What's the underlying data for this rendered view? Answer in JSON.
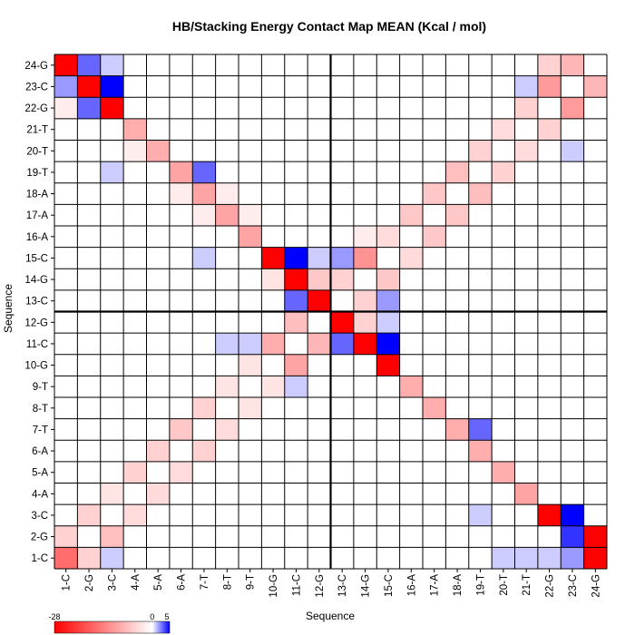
{
  "chart_data": {
    "type": "heatmap",
    "title": "HB/Stacking Energy Contact Map MEAN (Kcal / mol)",
    "xlabel": "Sequence",
    "ylabel": "Sequence",
    "x_categories": [
      "1-C",
      "2-G",
      "3-C",
      "4-A",
      "5-A",
      "6-A",
      "7-T",
      "8-T",
      "9-T",
      "10-G",
      "11-C",
      "12-G",
      "13-C",
      "14-G",
      "15-C",
      "16-A",
      "17-A",
      "18-A",
      "19-T",
      "20-T",
      "21-T",
      "22-G",
      "23-C",
      "24-G"
    ],
    "y_categories": [
      "1-C",
      "2-G",
      "3-C",
      "4-A",
      "5-A",
      "6-A",
      "7-T",
      "8-T",
      "9-T",
      "10-G",
      "11-C",
      "12-G",
      "13-C",
      "14-G",
      "15-C",
      "16-A",
      "17-A",
      "18-A",
      "19-T",
      "20-T",
      "21-T",
      "22-G",
      "23-C",
      "24-G"
    ],
    "colorbar": {
      "min": -28,
      "mid": 0,
      "max": 5,
      "ticks": [
        "-28",
        "0",
        "5"
      ],
      "low_color": "#ff0000",
      "mid_color": "#ffffff",
      "high_color": "#0000ff"
    },
    "strand_divider_after_index": 12,
    "matrix": [
      [
        -16,
        -5,
        1,
        0,
        0,
        0,
        0,
        0,
        0,
        0,
        0,
        0,
        0,
        0,
        0,
        0,
        0,
        0,
        0,
        1,
        1,
        1,
        2,
        -28
      ],
      [
        -5,
        0,
        -7,
        0,
        0,
        0,
        0,
        0,
        0,
        0,
        0,
        0,
        0,
        0,
        0,
        0,
        0,
        0,
        0,
        0,
        0,
        0,
        4,
        -28
      ],
      [
        0,
        -5,
        0,
        -4,
        0,
        0,
        0,
        0,
        0,
        0,
        0,
        0,
        0,
        0,
        0,
        0,
        0,
        0,
        1,
        0,
        0,
        -28,
        5,
        0
      ],
      [
        0,
        0,
        -3,
        0,
        -4,
        0,
        0,
        0,
        0,
        0,
        0,
        0,
        0,
        0,
        0,
        0,
        0,
        0,
        0,
        0,
        -10,
        0,
        0,
        0
      ],
      [
        0,
        0,
        0,
        -5,
        0,
        -4,
        0,
        0,
        0,
        0,
        0,
        0,
        0,
        0,
        0,
        0,
        0,
        0,
        0,
        -9,
        0,
        0,
        0,
        0
      ],
      [
        0,
        0,
        0,
        0,
        -5,
        0,
        -5,
        0,
        0,
        0,
        0,
        0,
        0,
        0,
        0,
        0,
        0,
        0,
        -9,
        0,
        0,
        0,
        0,
        0
      ],
      [
        0,
        0,
        0,
        0,
        0,
        -6,
        0,
        -4,
        0,
        0,
        0,
        0,
        0,
        0,
        0,
        0,
        0,
        -9,
        3,
        0,
        0,
        0,
        0,
        0
      ],
      [
        0,
        0,
        0,
        0,
        0,
        0,
        -5,
        0,
        -3,
        0,
        0,
        0,
        0,
        0,
        0,
        0,
        -9,
        0,
        0,
        0,
        0,
        0,
        0,
        0
      ],
      [
        0,
        0,
        0,
        0,
        0,
        0,
        0,
        -3,
        0,
        -3,
        1,
        0,
        0,
        0,
        0,
        -9,
        0,
        0,
        0,
        0,
        0,
        0,
        0,
        0
      ],
      [
        0,
        0,
        0,
        0,
        0,
        0,
        0,
        0,
        -3,
        0,
        -10,
        0,
        0,
        0,
        -28,
        0,
        0,
        0,
        0,
        0,
        0,
        0,
        0,
        0
      ],
      [
        0,
        0,
        0,
        0,
        0,
        0,
        0,
        1,
        1,
        -9,
        0,
        -8,
        3,
        -28,
        5,
        0,
        0,
        0,
        0,
        0,
        0,
        0,
        0,
        0
      ],
      [
        0,
        0,
        0,
        0,
        0,
        0,
        0,
        0,
        0,
        0,
        -7,
        0,
        -28,
        -5,
        1,
        0,
        0,
        0,
        0,
        0,
        0,
        0,
        0,
        0
      ],
      [
        0,
        0,
        0,
        0,
        0,
        0,
        0,
        0,
        0,
        0,
        3,
        -28,
        0,
        -5,
        2,
        0,
        0,
        0,
        0,
        0,
        0,
        0,
        0,
        0
      ],
      [
        0,
        0,
        0,
        0,
        0,
        0,
        0,
        0,
        0,
        -3,
        -28,
        -6,
        -5,
        0,
        -6,
        0,
        0,
        0,
        0,
        0,
        0,
        0,
        0,
        0
      ],
      [
        0,
        0,
        0,
        0,
        0,
        0,
        1,
        0,
        0,
        -28,
        5,
        1,
        2,
        -12,
        0,
        -4,
        0,
        0,
        0,
        0,
        0,
        0,
        0,
        0
      ],
      [
        0,
        0,
        0,
        0,
        0,
        0,
        0,
        0,
        -10,
        0,
        0,
        0,
        0,
        -2,
        -4,
        0,
        -6,
        0,
        0,
        0,
        0,
        0,
        0,
        0
      ],
      [
        0,
        0,
        0,
        0,
        0,
        0,
        -2,
        -10,
        -2,
        0,
        0,
        0,
        0,
        0,
        0,
        -6,
        0,
        -6,
        0,
        0,
        0,
        0,
        0,
        0
      ],
      [
        0,
        0,
        0,
        0,
        0,
        -2,
        -10,
        -2,
        0,
        0,
        0,
        0,
        0,
        0,
        0,
        0,
        -6,
        0,
        -7,
        0,
        0,
        0,
        0,
        0
      ],
      [
        0,
        0,
        1,
        0,
        0,
        -10,
        3,
        0,
        0,
        0,
        0,
        0,
        0,
        0,
        0,
        0,
        0,
        -7,
        0,
        -5,
        0,
        0,
        0,
        0
      ],
      [
        0,
        0,
        0,
        -2,
        -9,
        0,
        0,
        0,
        0,
        0,
        0,
        0,
        0,
        0,
        0,
        0,
        0,
        0,
        -5,
        0,
        -4,
        0,
        1,
        0
      ],
      [
        0,
        0,
        0,
        -9,
        0,
        0,
        0,
        0,
        0,
        0,
        0,
        0,
        0,
        0,
        0,
        0,
        0,
        0,
        0,
        -4,
        0,
        -5,
        0,
        0
      ],
      [
        -2,
        3,
        -28,
        0,
        0,
        0,
        0,
        0,
        0,
        0,
        0,
        0,
        0,
        0,
        0,
        0,
        0,
        0,
        0,
        0,
        -5,
        0,
        -11,
        0
      ],
      [
        2,
        -28,
        5,
        0,
        0,
        0,
        0,
        0,
        0,
        0,
        0,
        0,
        0,
        0,
        0,
        0,
        0,
        0,
        0,
        0,
        1,
        -11,
        0,
        -8
      ],
      [
        -28,
        3,
        1,
        0,
        0,
        0,
        0,
        0,
        0,
        0,
        0,
        0,
        0,
        0,
        0,
        0,
        0,
        0,
        0,
        0,
        0,
        -5,
        -8,
        0
      ]
    ]
  }
}
